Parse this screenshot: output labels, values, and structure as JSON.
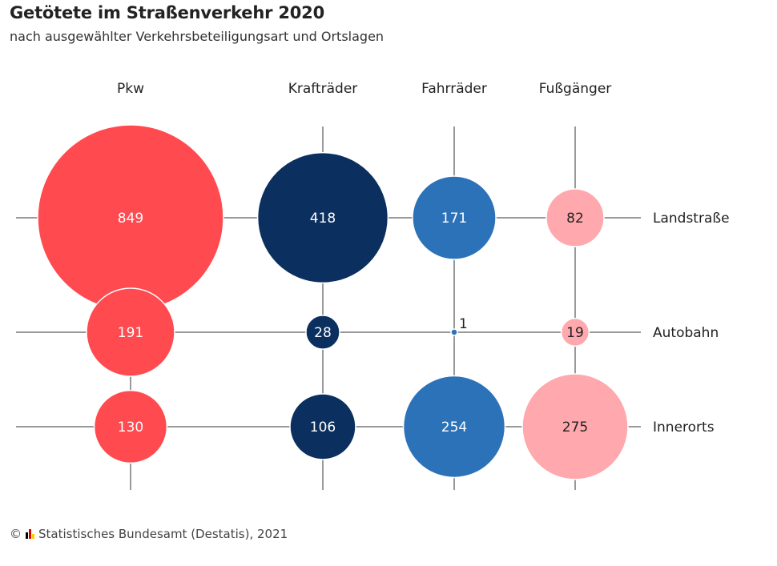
{
  "header": {
    "title": "Getötete im Straßenverkehr 2020",
    "subtitle": "nach ausgewählter Verkehrsbeteiligungsart und Ortslagen"
  },
  "footer": {
    "copyright_symbol": "©",
    "source": "Statistisches Bundesamt (Destatis), 2021",
    "flag_colors": [
      "#000000",
      "#dd0000",
      "#ffce00"
    ]
  },
  "chart_data": {
    "type": "bubble-grid",
    "title": "Getötete im Straßenverkehr 2020",
    "subtitle": "nach ausgewählter Verkehrsbeteiligungsart und Ortslagen",
    "columns": [
      "Pkw",
      "Krafträder",
      "Fahrräder",
      "Fußgänger"
    ],
    "rows": [
      "Landstraße",
      "Autobahn",
      "Innerorts"
    ],
    "values": [
      [
        849,
        418,
        171,
        82
      ],
      [
        191,
        28,
        1,
        19
      ],
      [
        130,
        106,
        254,
        275
      ]
    ],
    "column_colors": [
      "#ff4a50",
      "#0b2f5e",
      "#2c72b8",
      "#ffa8ad"
    ],
    "label_colors": [
      "#ffffff",
      "#ffffff",
      "#ffffff",
      "#222222"
    ]
  }
}
